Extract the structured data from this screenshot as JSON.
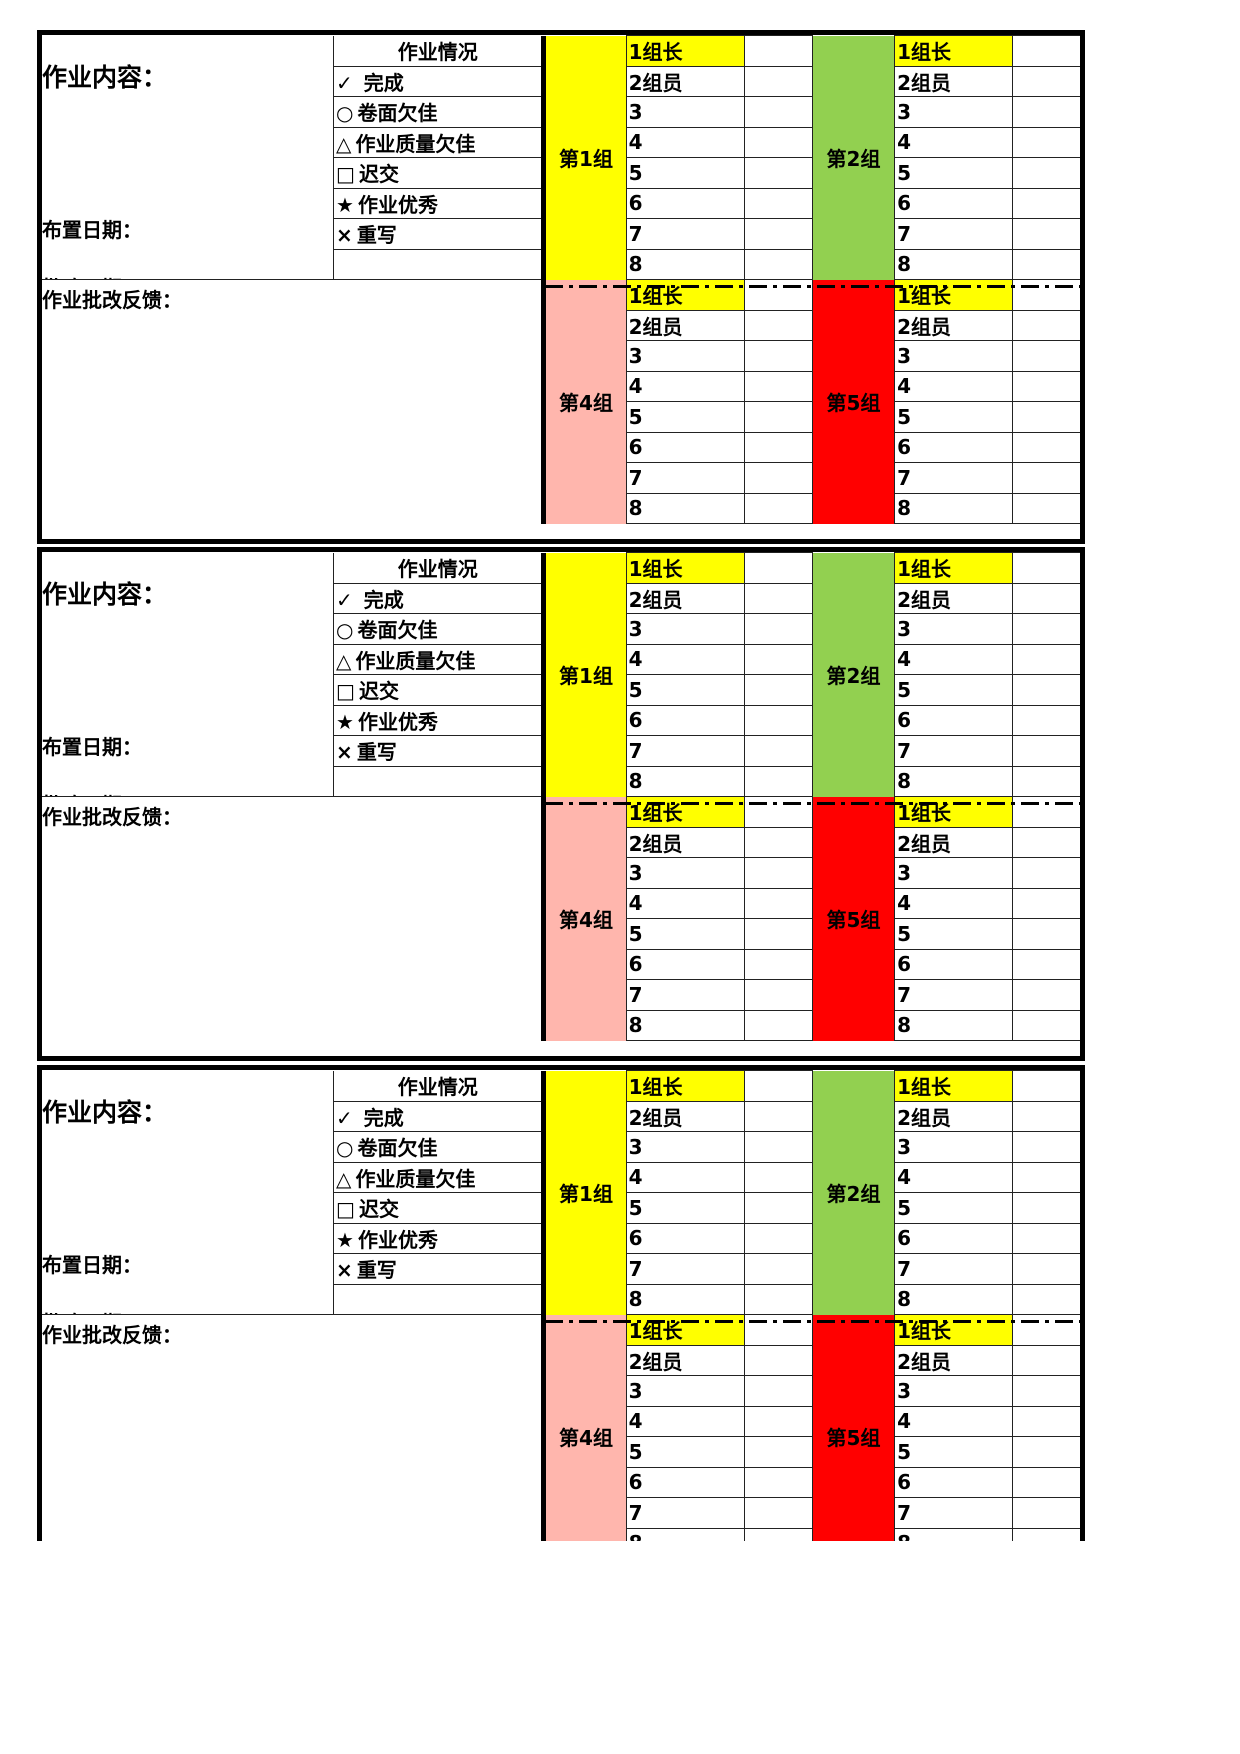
{
  "form": {
    "content_label": "作业内容：",
    "assign_date_label": "布置日期：",
    "grade_date_label": "批改日期：",
    "feedback_label": "作业批改反馈：",
    "legend_title": "作业情况",
    "legend": [
      {
        "symbol": "✓",
        "label": " 完成"
      },
      {
        "symbol": "○",
        "label": "卷面欠佳"
      },
      {
        "symbol": "△",
        "label": "作业质量欠佳"
      },
      {
        "symbol": "□",
        "label": "迟交"
      },
      {
        "symbol": "★",
        "label": "作业优秀"
      },
      {
        "symbol": "×",
        "label": "重写"
      }
    ],
    "members": [
      "1组长",
      "2组员",
      "3",
      "4",
      "5",
      "6",
      "7",
      "8"
    ],
    "groups": [
      {
        "name": "第1组",
        "color": "#ffff00"
      },
      {
        "name": "第2组",
        "color": "#92d050"
      },
      {
        "name": "第4组",
        "color": "#ffb6ad"
      },
      {
        "name": "第5组",
        "color": "#ff0000"
      }
    ],
    "leader_color": "#ffff00"
  },
  "blocks": [
    {
      "visible_rows": 16
    },
    {
      "visible_rows": 16
    },
    {
      "visible_rows": 15
    }
  ]
}
